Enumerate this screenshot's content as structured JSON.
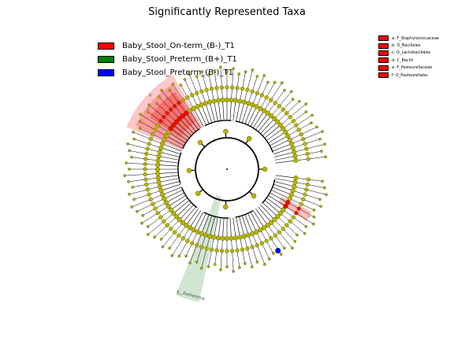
{
  "title": "Significantly Represented Taxa",
  "legend": [
    {
      "label": "Baby_Stool_On-term_(B-)_T1",
      "color": "#ff0000"
    },
    {
      "label": "Baby_Stool_Preterm_(B+)_T1",
      "color": "#008000"
    },
    {
      "label": "Baby_Stool_Preterm_(B-)_T1",
      "color": "#0000ff"
    }
  ],
  "taxa_key": [
    {
      "label": "a: F_Staphylococcaceae"
    },
    {
      "label": "b: O_Bacillales"
    },
    {
      "label": "c: O_Lactobacillales"
    },
    {
      "label": "d: C_Bacilli"
    },
    {
      "label": "e: F_Pasteurellaceae"
    },
    {
      "label": "f: O_Pasteurellales"
    }
  ],
  "sector_labels": {
    "red_outer": "d",
    "red_mid": "c",
    "red_inner": "b",
    "red_lower": "f",
    "green": "g__Escherichia"
  },
  "colors": {
    "node": "#b5b500",
    "node_edge": "#555500",
    "red_fill": "#ff0000",
    "green_fill": "#2e8b2e",
    "blue_node": "#0000ff"
  }
}
